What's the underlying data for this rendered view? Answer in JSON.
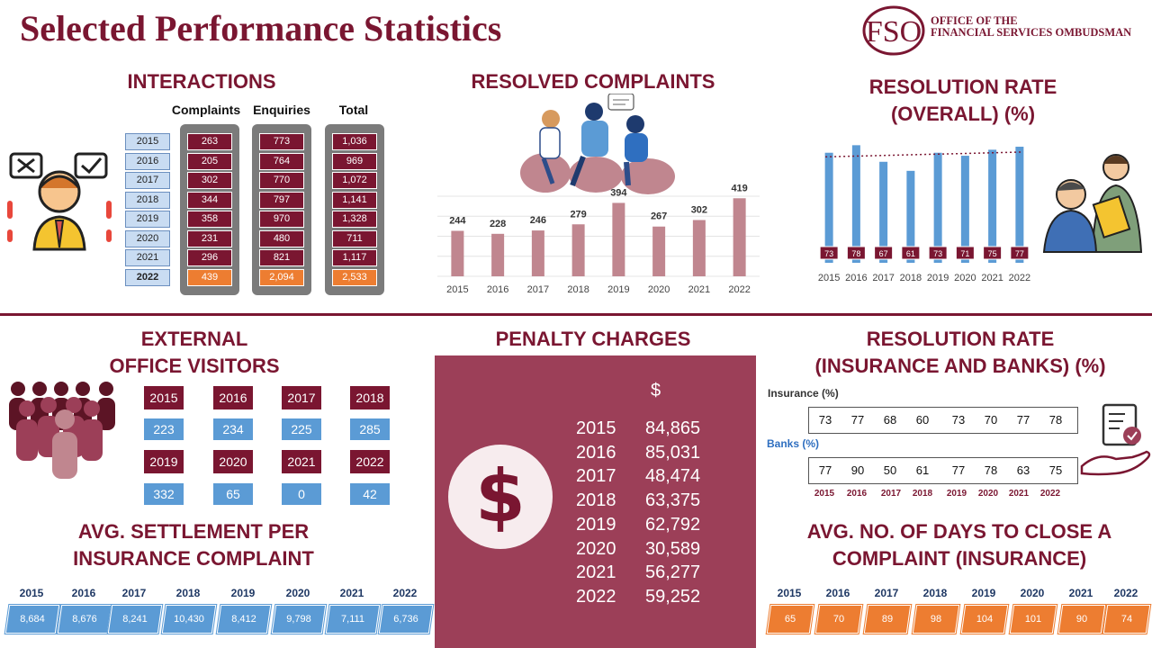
{
  "title": "Selected Performance Statistics",
  "logo": {
    "mark": "FSO",
    "line1": "OFFICE OF THE",
    "line2": "FINANCIAL SERVICES OMBUDSMAN",
    "color": "#7a1631"
  },
  "colors": {
    "maroon": "#7a1631",
    "blue": "#5b9bd5",
    "orange": "#ed7d31",
    "rose": "#c0868f",
    "penalty_panel": "#9c3f58"
  },
  "interactions": {
    "heading": "INTERACTIONS",
    "col_complaints": "Complaints",
    "col_enquiries": "Enquiries",
    "col_total": "Total",
    "years": [
      "2015",
      "2016",
      "2017",
      "2018",
      "2019",
      "2020",
      "2021",
      "2022"
    ],
    "complaints": [
      "263",
      "205",
      "302",
      "344",
      "358",
      "231",
      "296",
      "439"
    ],
    "enquiries": [
      "773",
      "764",
      "770",
      "797",
      "970",
      "480",
      "821",
      "2,094"
    ],
    "total": [
      "1,036",
      "969",
      "1,072",
      "1,141",
      "1,328",
      "711",
      "1,117",
      "2,533"
    ]
  },
  "resolved": {
    "heading": "RESOLVED COMPLAINTS"
  },
  "resolution_overall": {
    "line1": "RESOLUTION RATE",
    "line2": "(OVERALL) (%)"
  },
  "visitors": {
    "line1": "EXTERNAL",
    "line2": "OFFICE VISITORS",
    "years": [
      "2015",
      "2016",
      "2017",
      "2018",
      "2019",
      "2020",
      "2021",
      "2022"
    ],
    "values": [
      "223",
      "234",
      "225",
      "285",
      "332",
      "65",
      "0",
      "42"
    ]
  },
  "penalty": {
    "heading": "PENALTY CHARGES",
    "currency": "$",
    "icon": "dollar-icon",
    "years": [
      "2015",
      "2016",
      "2017",
      "2018",
      "2019",
      "2020",
      "2021",
      "2022"
    ],
    "values": [
      "84,865",
      "85,031",
      "48,474",
      "63,375",
      "62,792",
      "30,589",
      "56,277",
      "59,252"
    ]
  },
  "resolution_ib": {
    "line1": "RESOLUTION RATE",
    "line2": "(INSURANCE AND BANKS) (%)",
    "insurance_label": "Insurance (%)",
    "banks_label": "Banks (%)",
    "insurance": [
      "73",
      "77",
      "68",
      "60",
      "73",
      "70",
      "77",
      "78"
    ],
    "banks": [
      "77",
      "90",
      "50",
      "61",
      "77",
      "78",
      "63",
      "75"
    ],
    "years": [
      "2015",
      "2016",
      "2017",
      "2018",
      "2019",
      "2020",
      "2021",
      "2022"
    ]
  },
  "settlement": {
    "line1": "AVG. SETTLEMENT PER",
    "line2": "INSURANCE COMPLAINT",
    "years": [
      "2015",
      "2016",
      "2017",
      "2018",
      "2019",
      "2020",
      "2021",
      "2022"
    ],
    "values": [
      "8,684",
      "8,676",
      "8,241",
      "10,430",
      "8,412",
      "9,798",
      "7,111",
      "6,736"
    ]
  },
  "days_to_close": {
    "line1": "AVG. NO. OF DAYS TO CLOSE A",
    "line2": "COMPLAINT (INSURANCE)",
    "years": [
      "2015",
      "2016",
      "2017",
      "2018",
      "2019",
      "2020",
      "2021",
      "2022"
    ],
    "values": [
      "65",
      "70",
      "89",
      "98",
      "104",
      "101",
      "90",
      "74"
    ]
  },
  "chart_data": [
    {
      "type": "bar",
      "categories": [
        "2015",
        "2016",
        "2017",
        "2018",
        "2019",
        "2020",
        "2021",
        "2022"
      ],
      "values": [
        244,
        228,
        246,
        279,
        394,
        267,
        302,
        419
      ],
      "ylim": [
        0,
        430
      ],
      "grid": true
    },
    {
      "type": "bar",
      "categories": [
        "2015",
        "2016",
        "2017",
        "2018",
        "2019",
        "2020",
        "2021",
        "2022"
      ],
      "values": [
        73,
        78,
        67,
        61,
        73,
        71,
        75,
        77
      ],
      "ylim": [
        0,
        80
      ],
      "trendline": true
    }
  ]
}
